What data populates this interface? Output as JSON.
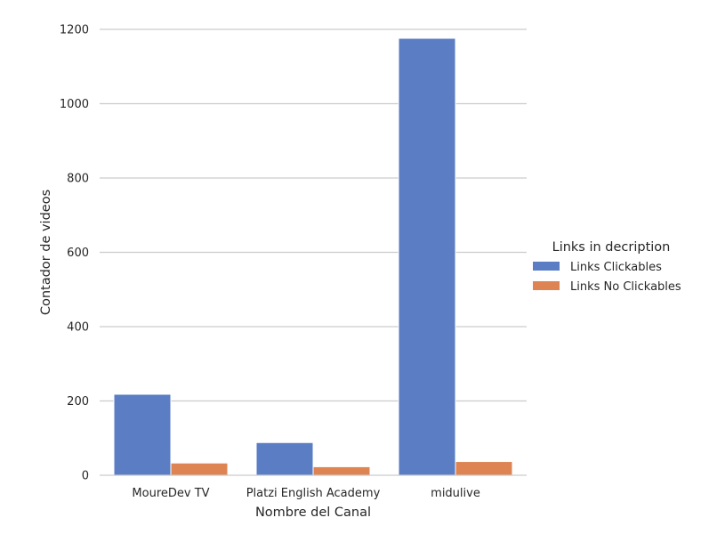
{
  "chart_data": {
    "type": "bar",
    "title": "",
    "xlabel": "Nombre del Canal",
    "ylabel": "Contador de videos",
    "categories": [
      "MoureDev TV",
      "Platzi English Academy",
      "midulive"
    ],
    "series": [
      {
        "name": "Links Clickables",
        "values": [
          218,
          88,
          1176
        ],
        "color": "#5a7dc4"
      },
      {
        "name": "Links No Clickables",
        "values": [
          33,
          23,
          37
        ],
        "color": "#dd8452"
      }
    ],
    "ylim": [
      0,
      1200
    ],
    "yticks": [
      0,
      200,
      400,
      600,
      800,
      1000,
      1200
    ],
    "grid": "horizontal",
    "legend": {
      "title": "Links in decription",
      "placement": "right"
    }
  }
}
